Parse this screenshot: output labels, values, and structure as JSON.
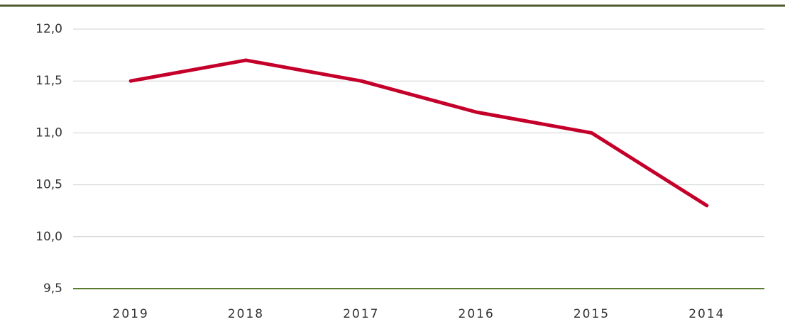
{
  "chart_data": {
    "type": "line",
    "categories": [
      "2019",
      "2018",
      "2017",
      "2016",
      "2015",
      "2014"
    ],
    "series": [
      {
        "name": null,
        "color": "#c4002a",
        "values": [
          11.5,
          11.7,
          11.5,
          11.2,
          11.0,
          10.3
        ]
      }
    ],
    "ylim": [
      9.5,
      12.0
    ],
    "yticks": [
      {
        "value": 9.5,
        "label": "9,5"
      },
      {
        "value": 10.0,
        "label": "10,0"
      },
      {
        "value": 10.5,
        "label": "10,5"
      },
      {
        "value": 11.0,
        "label": "11,0"
      },
      {
        "value": 11.5,
        "label": "11,5"
      },
      {
        "value": 12.0,
        "label": "12,0"
      }
    ],
    "grid": true
  }
}
